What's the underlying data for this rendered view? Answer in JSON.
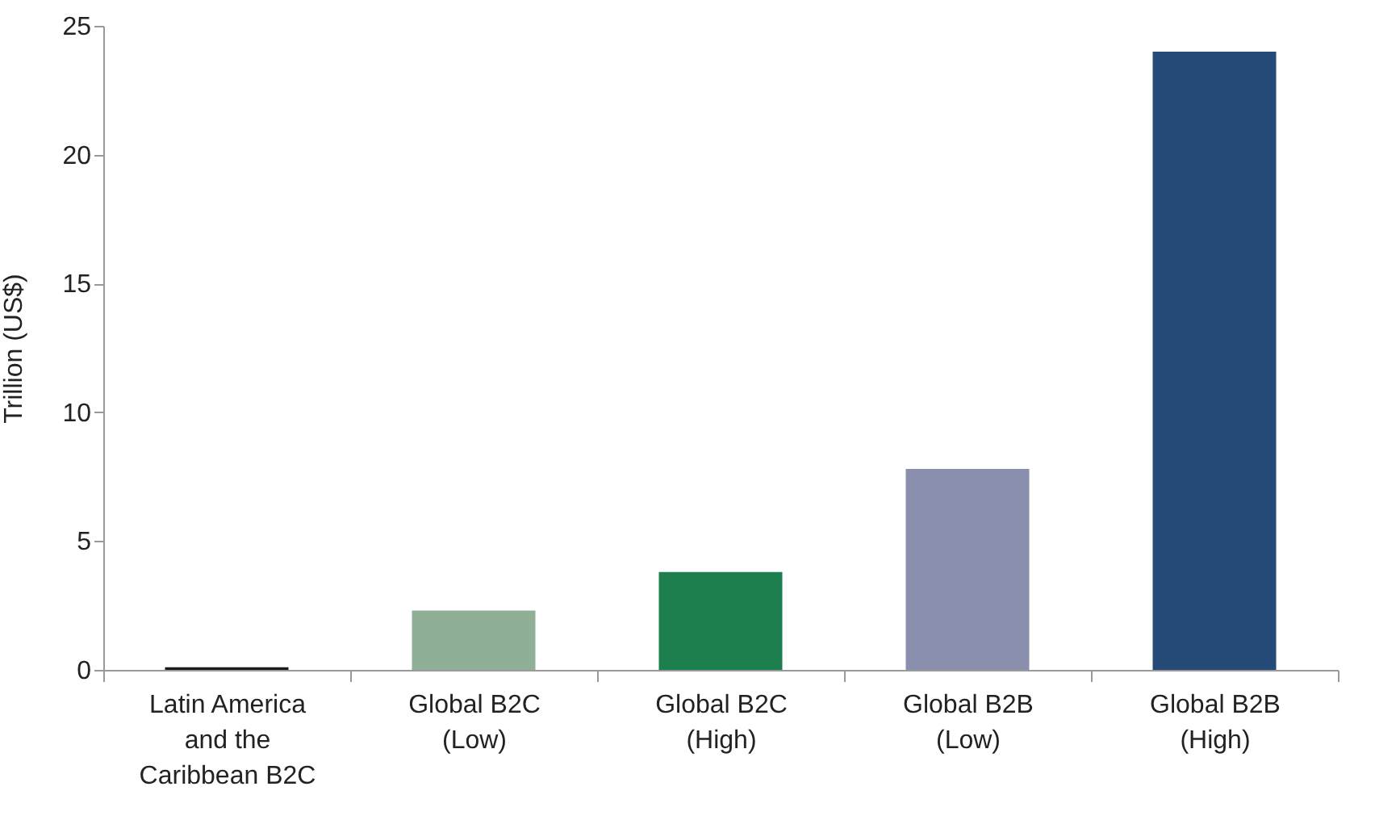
{
  "chart_data": {
    "type": "bar",
    "ylabel": "Trillion (US$)",
    "categories": [
      "Latin America\nand the\nCaribbean B2C",
      "Global B2C\n(Low)",
      "Global B2C\n(High)",
      "Global B2B\n(Low)",
      "Global B2B\n(High)"
    ],
    "values": [
      0.1,
      2.3,
      3.8,
      7.8,
      24.0
    ],
    "colors": [
      "#1a1a1a",
      "#8fb096",
      "#1e7f4e",
      "#8a8fad",
      "#264a77"
    ],
    "ylim": [
      0,
      25
    ],
    "yticks": [
      0,
      5,
      10,
      15,
      20,
      25
    ],
    "grid": false,
    "legend": false
  }
}
